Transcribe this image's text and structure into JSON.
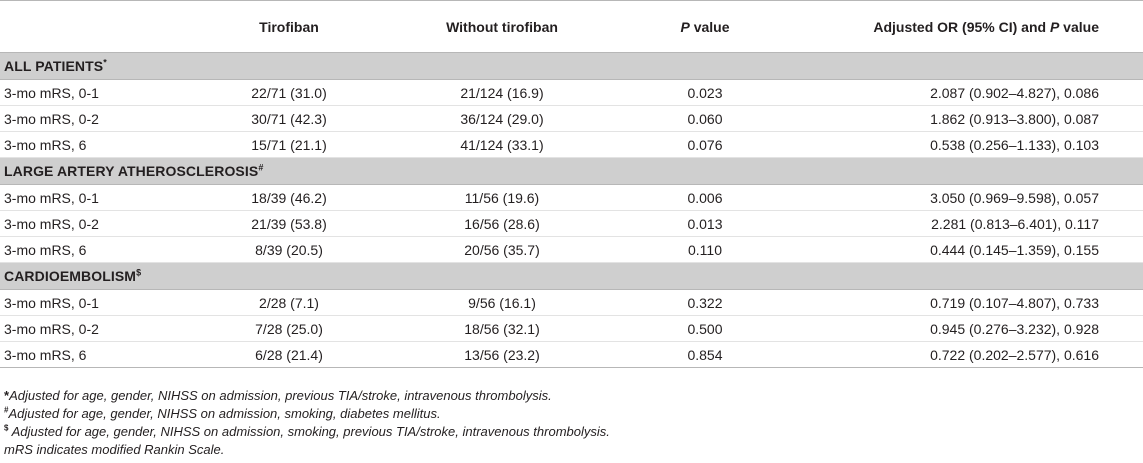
{
  "header": {
    "col0": "",
    "col1": "Tirofiban",
    "col2": "Without tirofiban",
    "col3_italic": "P",
    "col3_rest": " value",
    "col4_pre": "Adjusted OR (95% CI) and ",
    "col4_italic": "P",
    "col4_post": " value"
  },
  "sections": [
    {
      "title": "ALL PATIENTS",
      "marker": "*",
      "rows": [
        {
          "label": "3-mo mRS, 0-1",
          "tirofiban": "22/71 (31.0)",
          "without": "21/124 (16.9)",
          "p": "0.023",
          "adjusted": "2.087 (0.902–4.827), 0.086"
        },
        {
          "label": "3-mo mRS, 0-2",
          "tirofiban": "30/71 (42.3)",
          "without": "36/124 (29.0)",
          "p": "0.060",
          "adjusted": "1.862 (0.913–3.800), 0.087"
        },
        {
          "label": "3-mo mRS, 6",
          "tirofiban": "15/71 (21.1)",
          "without": "41/124 (33.1)",
          "p": "0.076",
          "adjusted": "0.538 (0.256–1.133), 0.103"
        }
      ]
    },
    {
      "title": "LARGE ARTERY ATHEROSCLEROSIS",
      "marker": "#",
      "rows": [
        {
          "label": "3-mo mRS, 0-1",
          "tirofiban": "18/39 (46.2)",
          "without": "11/56 (19.6)",
          "p": "0.006",
          "adjusted": "3.050 (0.969–9.598), 0.057"
        },
        {
          "label": "3-mo mRS, 0-2",
          "tirofiban": "21/39 (53.8)",
          "without": "16/56 (28.6)",
          "p": "0.013",
          "adjusted": "2.281 (0.813–6.401), 0.117"
        },
        {
          "label": "3-mo mRS, 6",
          "tirofiban": "8/39 (20.5)",
          "without": "20/56 (35.7)",
          "p": "0.110",
          "adjusted": "0.444 (0.145–1.359), 0.155"
        }
      ]
    },
    {
      "title": "CARDIOEMBOLISM",
      "marker": "$",
      "rows": [
        {
          "label": "3-mo mRS, 0-1",
          "tirofiban": "2/28 (7.1)",
          "without": "9/56 (16.1)",
          "p": "0.322",
          "adjusted": "0.719 (0.107–4.807), 0.733"
        },
        {
          "label": "3-mo mRS, 0-2",
          "tirofiban": "7/28 (25.0)",
          "without": "18/56 (32.1)",
          "p": "0.500",
          "adjusted": "0.945 (0.276–3.232), 0.928"
        },
        {
          "label": "3-mo mRS, 6",
          "tirofiban": "6/28 (21.4)",
          "without": "13/56 (23.2)",
          "p": "0.854",
          "adjusted": "0.722 (0.202–2.577), 0.616"
        }
      ]
    }
  ],
  "footnotes": [
    {
      "marker": "*",
      "text": "Adjusted for age, gender, NIHSS on admission, previous TIA/stroke, intravenous thrombolysis."
    },
    {
      "marker": "#",
      "text": "Adjusted for age, gender, NIHSS on admission, smoking, diabetes mellitus."
    },
    {
      "marker": "$",
      "text": " Adjusted for age, gender, NIHSS on admission, smoking, previous TIA/stroke, intravenous thrombolysis."
    },
    {
      "marker": "",
      "text": "mRS indicates modified Rankin Scale."
    }
  ]
}
